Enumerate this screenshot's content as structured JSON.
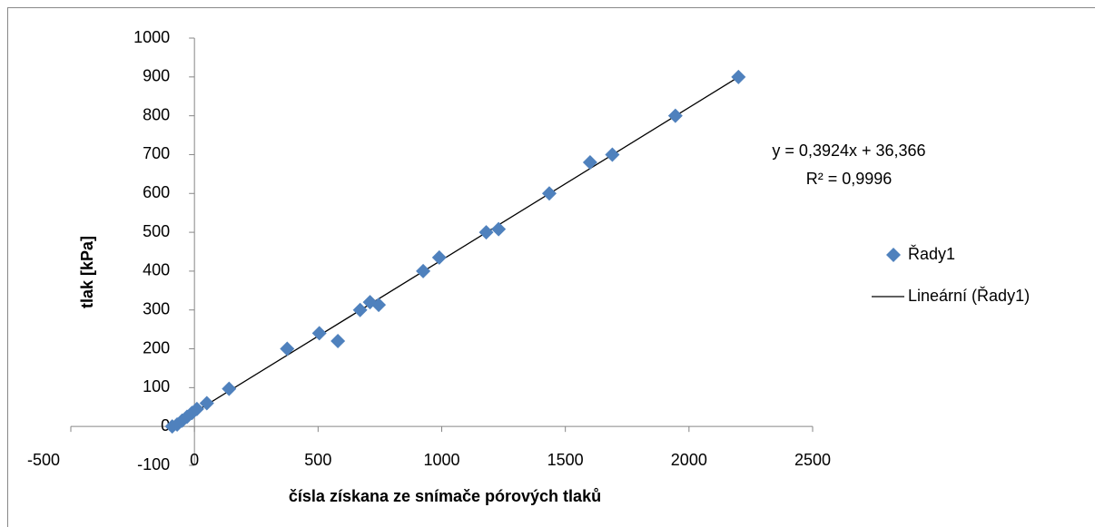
{
  "chart_data": {
    "type": "scatter",
    "x_label": "čísla získana ze snímače pórových tlaků",
    "y_label": "tlak [kPa]",
    "xlim": [
      -500,
      2500
    ],
    "xticks": [
      -500,
      0,
      500,
      1000,
      1500,
      2000,
      2500
    ],
    "ylim": [
      -100,
      1000
    ],
    "yticks": [
      -100,
      0,
      100,
      200,
      300,
      400,
      500,
      600,
      700,
      800,
      900,
      1000
    ],
    "grid": false,
    "series": [
      {
        "name": "Řady1",
        "color": "#4f81bd",
        "x": [
          -90,
          -70,
          -50,
          -30,
          -10,
          10,
          50,
          140,
          375,
          505,
          580,
          670,
          710,
          745,
          925,
          990,
          1180,
          1230,
          1435,
          1600,
          1690,
          1945,
          2200
        ],
        "values": [
          0,
          5,
          15,
          25,
          35,
          45,
          60,
          97,
          200,
          240,
          220,
          300,
          320,
          313,
          400,
          435,
          500,
          508,
          600,
          680,
          700,
          800,
          900
        ]
      }
    ],
    "trendline": {
      "name": "Lineární (Řady1)",
      "color": "#000000",
      "slope": 0.3924,
      "intercept": 36.366,
      "x_range": [
        -90,
        2200
      ],
      "equation": "y = 0,3924x + 36,366",
      "r2": "R² = 0,9996"
    }
  }
}
